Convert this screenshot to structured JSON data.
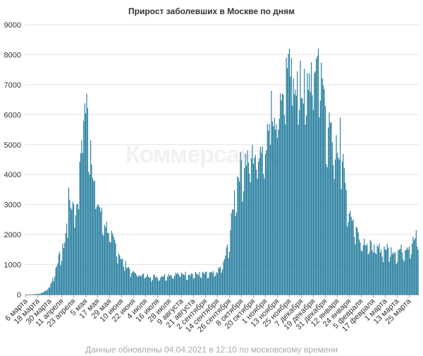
{
  "title": "Прирост заболевших в Москве по дням",
  "footer": "Данные обновлены 04.04.2021 в 12:10 по московскому времени",
  "watermark": "Коммерсантъ",
  "colors": {
    "bar": "#1f7a9c",
    "grid": "#e3e3e3",
    "axis": "#999999",
    "text": "#333333"
  },
  "chart_data": {
    "type": "bar",
    "title": "Прирост заболевших в Москве по дням",
    "xlabel": "",
    "ylabel": "",
    "ylim": [
      0,
      9000
    ],
    "yticks": [
      0,
      1000,
      2000,
      3000,
      4000,
      5000,
      6000,
      7000,
      8000,
      9000
    ],
    "grid": true,
    "legend": "none",
    "x_start": "2020-03-06",
    "x_end": "2021-04-03",
    "xtick_labels": [
      "6 марта",
      "18 марта",
      "30 марта",
      "11 апреля",
      "23 апреля",
      "5 мая",
      "17 мая",
      "29 мая",
      "10 июня",
      "22 июня",
      "4 июля",
      "16 июля",
      "28 июля",
      "9 августа",
      "21 августа",
      "2 сентября",
      "14 сентября",
      "26 сентября",
      "8 октября",
      "20 октября",
      "1 ноября",
      "13 ноября",
      "25 ноября",
      "7 декабря",
      "19 декабря",
      "31 декабря",
      "12 января",
      "24 января",
      "5 февраля",
      "17 февраля",
      "1 марта",
      "13 марта",
      "25 марта"
    ],
    "anchors": [
      {
        "x": "2020-03-06",
        "y": 5
      },
      {
        "x": "2020-03-12",
        "y": 5
      },
      {
        "x": "2020-03-18",
        "y": 20
      },
      {
        "x": "2020-03-24",
        "y": 80
      },
      {
        "x": "2020-03-30",
        "y": 250
      },
      {
        "x": "2020-04-03",
        "y": 600
      },
      {
        "x": "2020-04-07",
        "y": 1100
      },
      {
        "x": "2020-04-11",
        "y": 1400
      },
      {
        "x": "2020-04-14",
        "y": 1700
      },
      {
        "x": "2020-04-18",
        "y": 2700
      },
      {
        "x": "2020-04-23",
        "y": 3000
      },
      {
        "x": "2020-04-28",
        "y": 3000
      },
      {
        "x": "2020-05-01",
        "y": 5700
      },
      {
        "x": "2020-05-04",
        "y": 6000
      },
      {
        "x": "2020-05-07",
        "y": 5800
      },
      {
        "x": "2020-05-10",
        "y": 5000
      },
      {
        "x": "2020-05-13",
        "y": 3700
      },
      {
        "x": "2020-05-17",
        "y": 3000
      },
      {
        "x": "2020-05-22",
        "y": 2500
      },
      {
        "x": "2020-05-29",
        "y": 2000
      },
      {
        "x": "2020-06-04",
        "y": 1600
      },
      {
        "x": "2020-06-10",
        "y": 1150
      },
      {
        "x": "2020-06-16",
        "y": 900
      },
      {
        "x": "2020-06-22",
        "y": 700
      },
      {
        "x": "2020-07-04",
        "y": 620
      },
      {
        "x": "2020-07-16",
        "y": 580
      },
      {
        "x": "2020-07-28",
        "y": 650
      },
      {
        "x": "2020-08-09",
        "y": 680
      },
      {
        "x": "2020-08-21",
        "y": 670
      },
      {
        "x": "2020-09-02",
        "y": 670
      },
      {
        "x": "2020-09-10",
        "y": 680
      },
      {
        "x": "2020-09-14",
        "y": 750
      },
      {
        "x": "2020-09-20",
        "y": 1000
      },
      {
        "x": "2020-09-26",
        "y": 1800
      },
      {
        "x": "2020-10-02",
        "y": 3500
      },
      {
        "x": "2020-10-08",
        "y": 4300
      },
      {
        "x": "2020-10-14",
        "y": 4400
      },
      {
        "x": "2020-10-20",
        "y": 4500
      },
      {
        "x": "2020-10-26",
        "y": 4700
      },
      {
        "x": "2020-11-01",
        "y": 5000
      },
      {
        "x": "2020-11-07",
        "y": 5600
      },
      {
        "x": "2020-11-13",
        "y": 6000
      },
      {
        "x": "2020-11-19",
        "y": 6800
      },
      {
        "x": "2020-11-25",
        "y": 7200
      },
      {
        "x": "2020-12-01",
        "y": 7000
      },
      {
        "x": "2020-12-07",
        "y": 6500
      },
      {
        "x": "2020-12-13",
        "y": 6800
      },
      {
        "x": "2020-12-19",
        "y": 7300
      },
      {
        "x": "2020-12-24",
        "y": 7600
      },
      {
        "x": "2020-12-28",
        "y": 6900
      },
      {
        "x": "2021-01-03",
        "y": 5500
      },
      {
        "x": "2021-01-08",
        "y": 4800
      },
      {
        "x": "2021-01-12",
        "y": 4700
      },
      {
        "x": "2021-01-17",
        "y": 4400
      },
      {
        "x": "2021-01-20",
        "y": 3500
      },
      {
        "x": "2021-01-24",
        "y": 2800
      },
      {
        "x": "2021-01-30",
        "y": 2200
      },
      {
        "x": "2021-02-05",
        "y": 1800
      },
      {
        "x": "2021-02-11",
        "y": 1700
      },
      {
        "x": "2021-02-17",
        "y": 1500
      },
      {
        "x": "2021-02-23",
        "y": 1500
      },
      {
        "x": "2021-03-01",
        "y": 1500
      },
      {
        "x": "2021-03-07",
        "y": 1450
      },
      {
        "x": "2021-03-13",
        "y": 1400
      },
      {
        "x": "2021-03-19",
        "y": 1500
      },
      {
        "x": "2021-03-25",
        "y": 1600
      },
      {
        "x": "2021-04-03",
        "y": 1900
      }
    ],
    "peaks": [
      {
        "x": "2020-04-18",
        "y": 3570
      },
      {
        "x": "2020-05-06",
        "y": 6700
      },
      {
        "x": "2020-11-07",
        "y": 6800
      },
      {
        "x": "2020-11-22",
        "y": 7900
      },
      {
        "x": "2020-11-27",
        "y": 7900
      },
      {
        "x": "2020-12-06",
        "y": 7800
      },
      {
        "x": "2020-12-24",
        "y": 8200
      },
      {
        "x": "2021-01-15",
        "y": 5900
      },
      {
        "x": "2021-04-01",
        "y": 2150
      }
    ]
  }
}
